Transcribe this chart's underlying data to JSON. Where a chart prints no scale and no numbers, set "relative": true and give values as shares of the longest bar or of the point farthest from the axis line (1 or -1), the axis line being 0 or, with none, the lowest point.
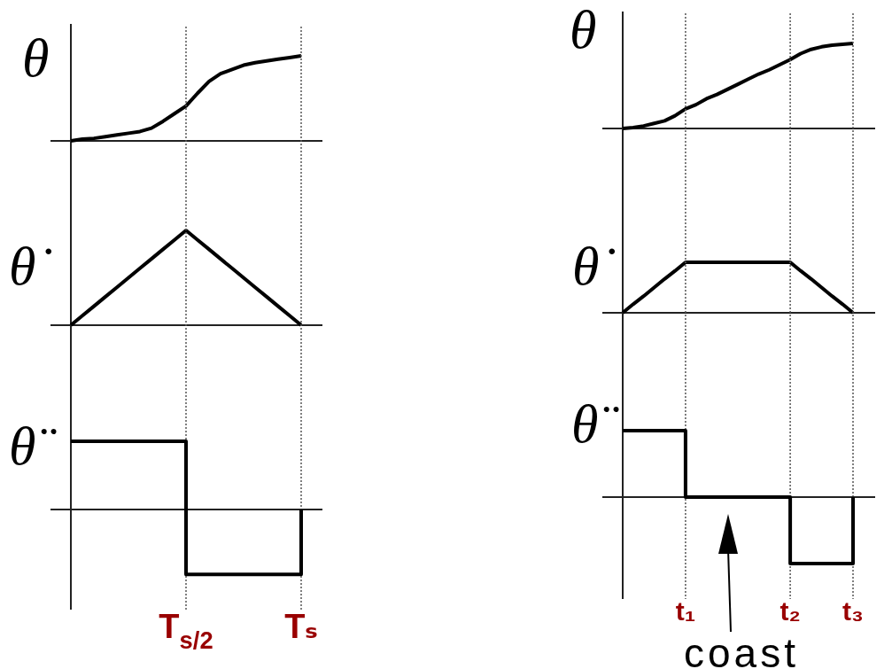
{
  "chart_data": [
    {
      "type": "line",
      "ylabel": "θ",
      "relative": true,
      "categories": [
        null,
        null,
        null,
        null,
        null,
        null,
        null,
        null,
        null,
        null,
        null,
        null,
        null,
        null,
        null,
        null,
        null,
        null,
        null,
        null,
        null
      ],
      "values": [
        0,
        0.02,
        0.03,
        0.05,
        0.07,
        0.09,
        0.11,
        0.15,
        0.23,
        0.32,
        0.41,
        0.56,
        0.7,
        0.79,
        0.84,
        0.89,
        0.92,
        0.94,
        0.96,
        0.98,
        1
      ],
      "color": "#000000"
    },
    {
      "type": "line",
      "ylabel": "θ",
      "relative": true,
      "categories": [
        null,
        null,
        null,
        null,
        null,
        null,
        null,
        null,
        null,
        null,
        null,
        null,
        null,
        null,
        null,
        null,
        null,
        null,
        null,
        null,
        null,
        null,
        null
      ],
      "values": [
        0,
        0.01,
        0.03,
        0.06,
        0.09,
        0.15,
        0.23,
        0.28,
        0.35,
        0.4,
        0.46,
        0.52,
        0.58,
        0.64,
        0.69,
        0.75,
        0.81,
        0.88,
        0.93,
        0.96,
        0.98,
        0.99,
        1
      ],
      "color": "#000000"
    },
    {
      "type": "line",
      "ylabel": "θ̇",
      "relative": true,
      "categories": [
        null,
        null,
        null,
        null,
        null,
        null,
        null,
        null,
        null,
        null,
        null,
        null,
        null,
        null,
        null,
        null,
        null,
        null,
        null,
        null,
        null
      ],
      "values": [
        0,
        0.1,
        0.2,
        0.3,
        0.4,
        0.5,
        0.6,
        0.7,
        0.8,
        0.9,
        1,
        0.9,
        0.8,
        0.7,
        0.6,
        0.5,
        0.4,
        0.3,
        0.2,
        0.1,
        0
      ],
      "color": "#000000"
    },
    {
      "type": "line",
      "ylabel": "θ̇",
      "relative": true,
      "categories": [
        null,
        null,
        null,
        null,
        null,
        null,
        null,
        null,
        null,
        null,
        null,
        null,
        null,
        null,
        null,
        null,
        null,
        null,
        null,
        null,
        null,
        null,
        null
      ],
      "values": [
        0,
        0.17,
        0.33,
        0.5,
        0.67,
        0.83,
        1,
        1,
        1,
        1,
        1,
        1,
        1,
        1,
        1,
        1,
        1,
        0.83,
        0.67,
        0.5,
        0.33,
        0.17,
        0
      ],
      "color": "#000000"
    },
    {
      "type": "step",
      "ylabel": "θ̈",
      "relative": true,
      "categories": [
        null,
        null,
        null,
        null,
        null,
        null,
        null,
        null,
        null,
        null,
        "T$_{s/2}$",
        null,
        null,
        null,
        null,
        null,
        null,
        null,
        null,
        null,
        "Tₛ"
      ],
      "values": [
        1,
        1,
        1,
        1,
        1,
        1,
        1,
        1,
        1,
        1,
        -0.95,
        -0.95,
        -0.95,
        -0.95,
        -0.95,
        -0.95,
        -0.95,
        -0.95,
        -0.95,
        -0.95,
        0
      ],
      "color": "#000000",
      "grid": "x",
      "tick_labels": "x"
    },
    {
      "type": "step",
      "ylabel": "θ̈",
      "relative": true,
      "categories": [
        null,
        null,
        null,
        null,
        null,
        null,
        "t₁",
        null,
        null,
        null,
        null,
        null,
        null,
        null,
        null,
        null,
        "t₂",
        null,
        null,
        null,
        null,
        null,
        "t₃"
      ],
      "values": [
        1,
        1,
        1,
        1,
        1,
        1,
        0,
        0,
        0,
        0,
        0,
        0,
        0,
        0,
        0,
        0,
        -1,
        -1,
        -1,
        -1,
        -1,
        -1,
        0
      ],
      "color": "#000000",
      "grid": "x",
      "tick_labels": "x",
      "annotations": [
        "coast"
      ]
    }
  ]
}
